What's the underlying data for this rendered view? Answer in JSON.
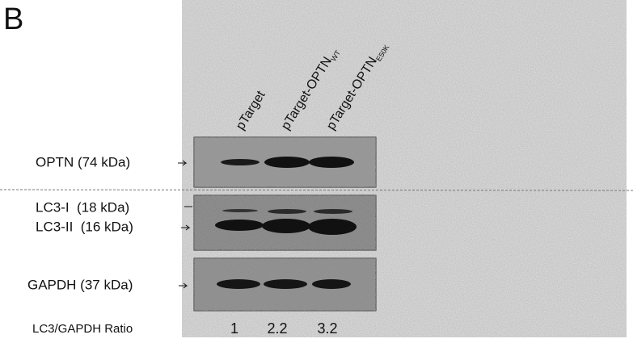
{
  "panel_label": "B",
  "lanes": [
    {
      "label": "pTarget"
    },
    {
      "label": "pTarget-OPTN",
      "subscript": "WT"
    },
    {
      "label": "pTarget-OPTN",
      "subscript": "E50K"
    }
  ],
  "rows": [
    {
      "label": "OPTN (74 kDa)"
    },
    {
      "label": "LC3-I  (18 kDa)"
    },
    {
      "label": "LC3-II  (16 kDa)"
    },
    {
      "label": "GAPDH (37 kDa)"
    }
  ],
  "ratio": {
    "label": "LC3/GAPDH Ratio",
    "values": [
      1,
      2.2,
      3.2
    ]
  }
}
